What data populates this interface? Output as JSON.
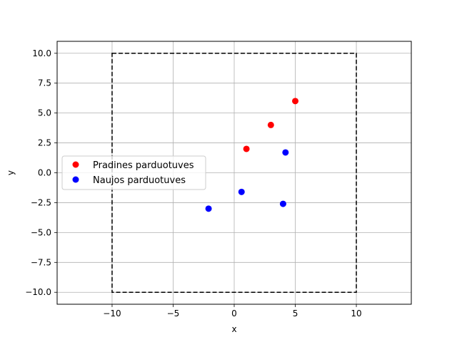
{
  "chart_data": {
    "type": "scatter",
    "xlabel": "x",
    "ylabel": "y",
    "xlim": [
      -14.5,
      14.5
    ],
    "ylim": [
      -11,
      11
    ],
    "x_ticks": [
      -10,
      -5,
      0,
      5,
      10
    ],
    "x_tick_labels": [
      "−10",
      "−5",
      "0",
      "5",
      "10"
    ],
    "y_ticks": [
      -10,
      -7.5,
      -5,
      -2.5,
      0,
      2.5,
      5,
      7.5,
      10
    ],
    "y_tick_labels": [
      "−10.0",
      "−7.5",
      "−5.0",
      "−2.5",
      "0.0",
      "2.5",
      "5.0",
      "7.5",
      "10.0"
    ],
    "grid": true,
    "boundary": {
      "x": [
        -10,
        10
      ],
      "y": [
        -10,
        10
      ],
      "style": "dashed",
      "color": "#000000"
    },
    "legend_placement": "center-left",
    "series": [
      {
        "name": "Pradines parduotuves",
        "color": "#ff0000",
        "points": [
          [
            1,
            2
          ],
          [
            3,
            4
          ],
          [
            5,
            6
          ]
        ]
      },
      {
        "name": "Naujos parduotuves",
        "color": "#0000ff",
        "points": [
          [
            4.2,
            1.7
          ],
          [
            0.6,
            -1.6
          ],
          [
            -2.1,
            -3.0
          ],
          [
            4.0,
            -2.6
          ]
        ]
      }
    ]
  }
}
